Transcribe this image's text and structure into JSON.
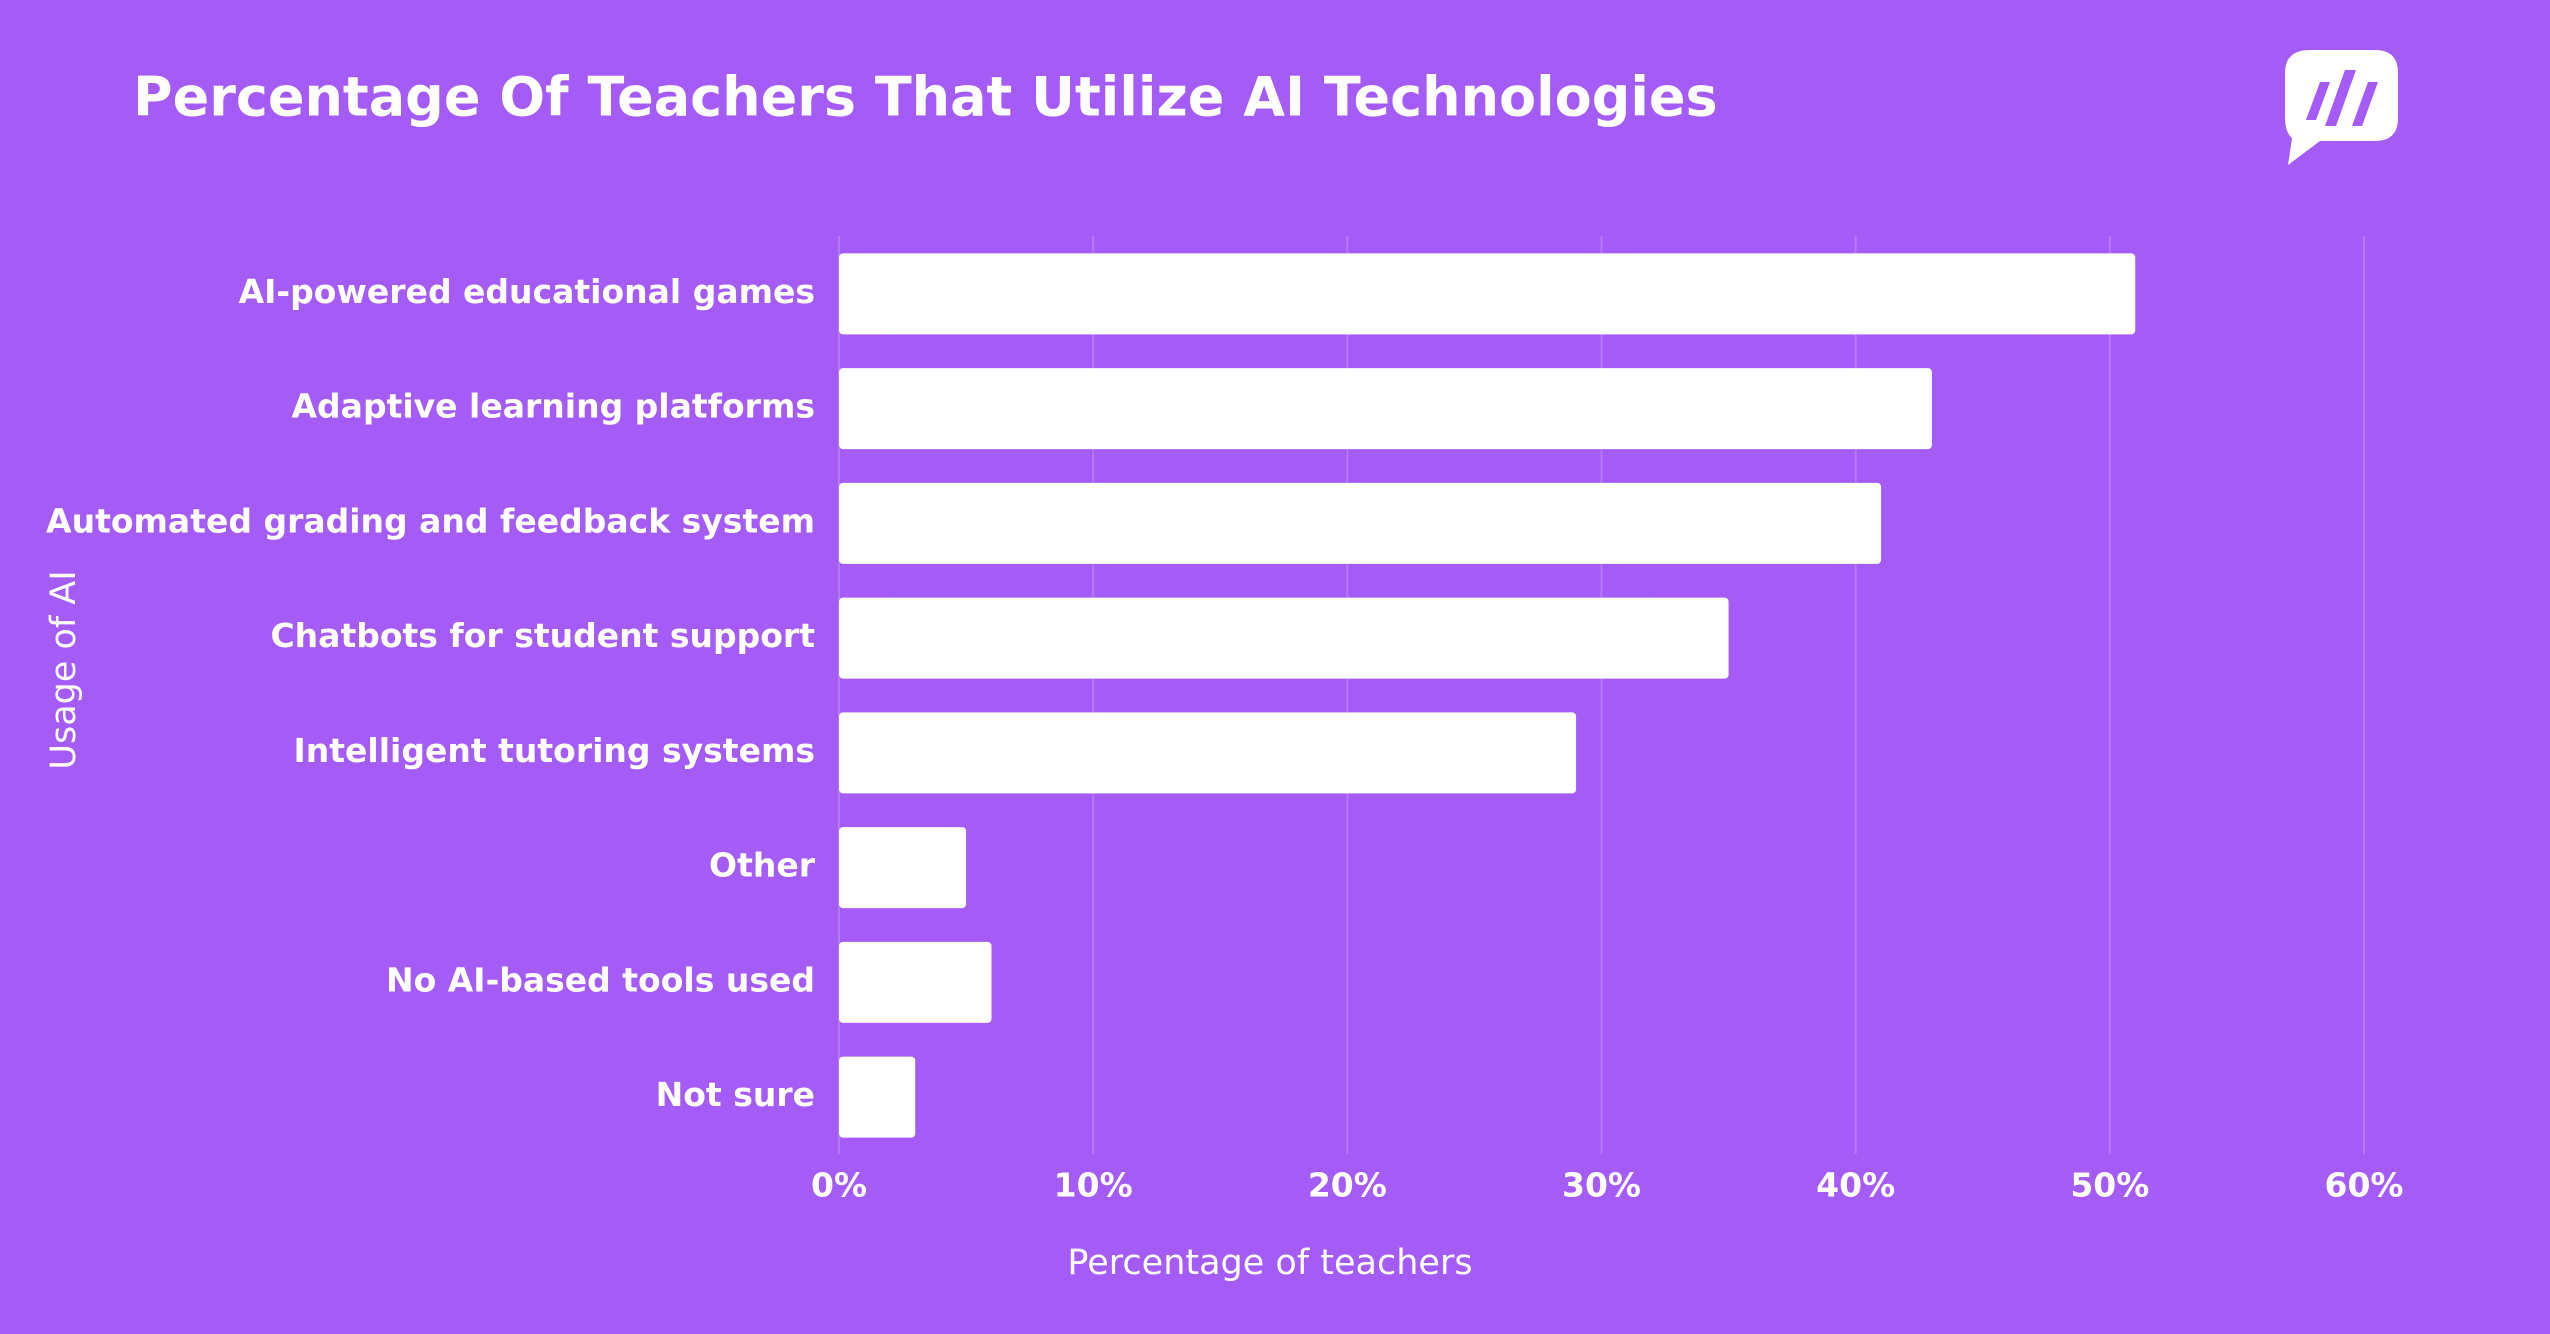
{
  "chart_data": {
    "type": "hbar",
    "title": "Percentage Of Teachers That Utilize AI Technologies",
    "x_label": "Percentage of teachers",
    "y_label": "Usage of AI",
    "categories": [
      "AI-powered educational games",
      "Adaptive learning platforms",
      "Automated grading and feedback system",
      "Chatbots for student support",
      "Intelligent tutoring systems",
      "Other",
      "No AI-based tools used",
      "Not sure"
    ],
    "values": [
      51,
      43,
      41,
      35,
      29,
      5,
      6,
      3
    ],
    "color": "#ffffff",
    "xlim": [
      0,
      60
    ],
    "xticks": [
      {
        "value": 0,
        "label": "0%"
      },
      {
        "value": 10,
        "label": "10%"
      },
      {
        "value": 20,
        "label": "20%"
      },
      {
        "value": 30,
        "label": "30%"
      },
      {
        "value": 40,
        "label": "40%"
      },
      {
        "value": 50,
        "label": "50%"
      },
      {
        "value": 60,
        "label": "60%"
      }
    ],
    "grid": true
  }
}
